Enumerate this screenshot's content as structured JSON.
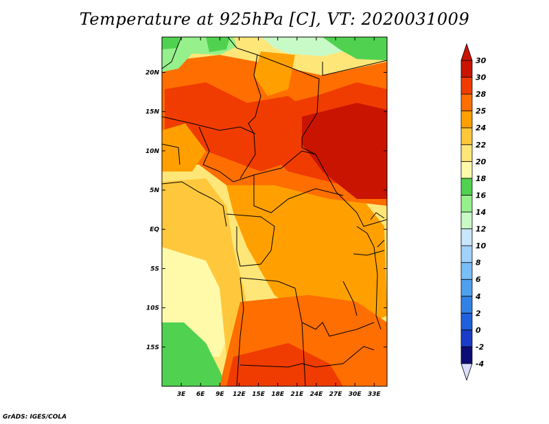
{
  "title": "Temperature at 925hPa [C], VT: 2020031009",
  "credit": "GrADS: IGES/COLA",
  "map": {
    "lon_range": [
      0,
      35
    ],
    "lat_range": [
      -20,
      24.5
    ],
    "lon_ticks": [
      {
        "value": 3,
        "label": "3E"
      },
      {
        "value": 6,
        "label": "6E"
      },
      {
        "value": 9,
        "label": "9E"
      },
      {
        "value": 12,
        "label": "12E"
      },
      {
        "value": 15,
        "label": "15E"
      },
      {
        "value": 18,
        "label": "18E"
      },
      {
        "value": 21,
        "label": "21E"
      },
      {
        "value": 24,
        "label": "24E"
      },
      {
        "value": 27,
        "label": "27E"
      },
      {
        "value": 30,
        "label": "30E"
      },
      {
        "value": 33,
        "label": "33E"
      }
    ],
    "lat_ticks": [
      {
        "value": 20,
        "label": "20N"
      },
      {
        "value": 15,
        "label": "15N"
      },
      {
        "value": 10,
        "label": "10N"
      },
      {
        "value": 5,
        "label": "5N"
      },
      {
        "value": 0,
        "label": "EQ"
      },
      {
        "value": -5,
        "label": "5S"
      },
      {
        "value": -10,
        "label": "10S"
      },
      {
        "value": -15,
        "label": "15S"
      }
    ]
  },
  "colorbar": {
    "orientation": "vertical",
    "min_label": "-4",
    "max_label": "30",
    "levels": [
      {
        "label": "-4",
        "color": "#0d0d78"
      },
      {
        "label": "-2",
        "color": "#1a3cc8"
      },
      {
        "label": "0",
        "color": "#2060dc"
      },
      {
        "label": "2",
        "color": "#3282e6"
      },
      {
        "label": "4",
        "color": "#50a0f0"
      },
      {
        "label": "6",
        "color": "#78bef8"
      },
      {
        "label": "8",
        "color": "#a0d2fa"
      },
      {
        "label": "10",
        "color": "#c8e6fc"
      },
      {
        "label": "12",
        "color": "#c8fac8"
      },
      {
        "label": "14",
        "color": "#96f08c"
      },
      {
        "label": "16",
        "color": "#50d250"
      },
      {
        "label": "18",
        "color": "#fffaaa"
      },
      {
        "label": "20",
        "color": "#ffe678"
      },
      {
        "label": "22",
        "color": "#ffc83c"
      },
      {
        "label": "24",
        "color": "#ffa000"
      },
      {
        "label": "25",
        "color": "#ff6e00"
      },
      {
        "label": "28",
        "color": "#f03c00"
      },
      {
        "label": "30",
        "color": "#c81400"
      }
    ],
    "lower_arrow_color": "#dcdcff",
    "upper_arrow_color": "#c81400"
  }
}
